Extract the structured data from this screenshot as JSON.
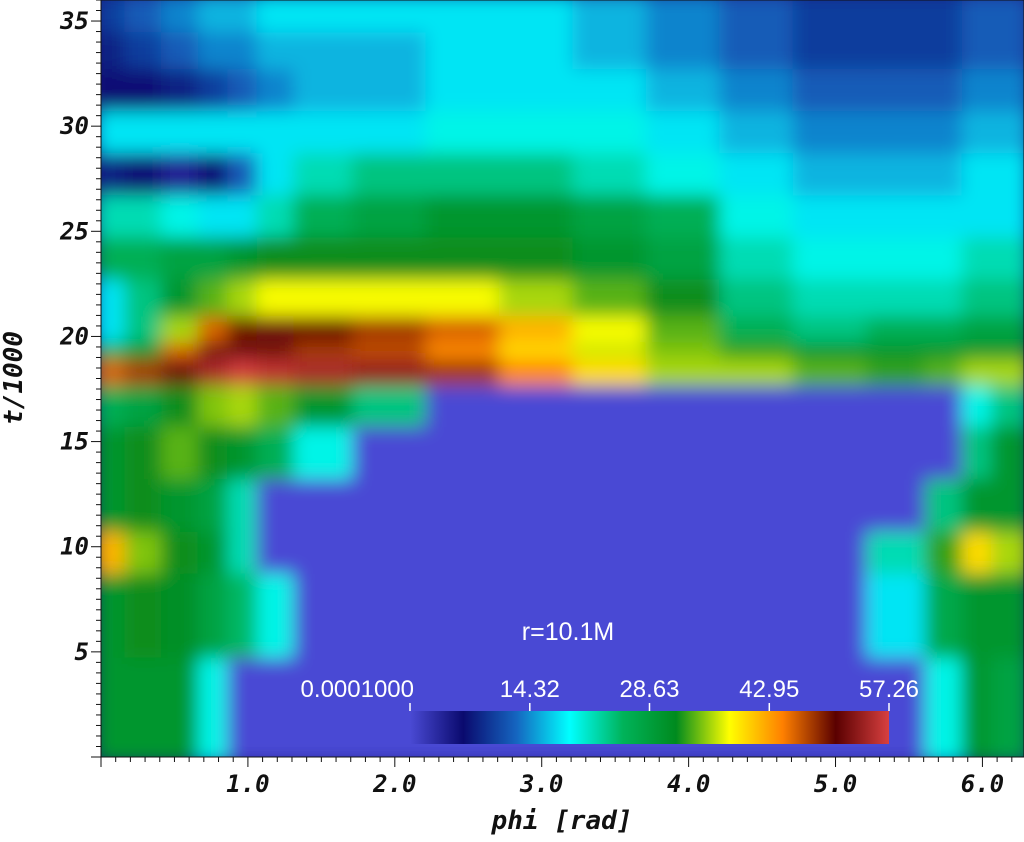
{
  "chart_data": {
    "type": "heatmap",
    "title": "",
    "xlabel": "phi [rad]",
    "ylabel": "t/1000",
    "xlim": [
      0,
      6.283
    ],
    "ylim": [
      0,
      36
    ],
    "x_ticks": [
      1.0,
      2.0,
      3.0,
      4.0,
      5.0,
      6.0
    ],
    "x_tick_labels": [
      "1.0",
      "2.0",
      "3.0",
      "4.0",
      "5.0",
      "6.0"
    ],
    "y_ticks": [
      5,
      10,
      15,
      20,
      25,
      30,
      35
    ],
    "y_tick_labels": [
      "5",
      "10",
      "15",
      "20",
      "25",
      "30",
      "35"
    ],
    "annotation": "r=10.1M",
    "colormap": {
      "min": 0.0001,
      "max": 57.26,
      "tick_values": [
        0.0001,
        14.32,
        28.63,
        42.95,
        57.26
      ],
      "tick_labels": [
        "0.0001000",
        "14.32",
        "28.63",
        "42.95",
        "57.26"
      ],
      "colors": [
        "#4a4ad4",
        "#0a0a6e",
        "#1565c0",
        "#00ffff",
        "#00b35a",
        "#008a1e",
        "#ffff00",
        "#ff8000",
        "#5a0000",
        "#d84040"
      ]
    },
    "field_samples": {
      "phi": [
        0.1,
        0.3,
        0.6,
        0.8,
        1.0,
        1.2,
        1.5,
        2.0,
        2.5,
        3.0,
        3.5,
        4.0,
        4.5,
        5.0,
        5.5,
        5.8,
        6.0,
        6.2
      ],
      "t": [
        2,
        8,
        10,
        12,
        15,
        17,
        18.9,
        19.5,
        20.5,
        22,
        24,
        26,
        28,
        30,
        32,
        34,
        35.5
      ],
      "values": [
        [
          30,
          30,
          30,
          20,
          0.0001,
          0.0001,
          0.0001,
          0.0001,
          0.0001,
          0.0001,
          0.0001,
          0.0001,
          0.0001,
          0.0001,
          0.0001,
          20,
          30,
          28
        ],
        [
          30,
          32,
          31,
          28,
          25,
          20,
          0.0001,
          0.0001,
          0.0001,
          0.0001,
          0.0001,
          0.0001,
          0.0001,
          0.0001,
          18,
          27,
          30,
          30
        ],
        [
          42,
          35,
          32,
          30,
          22,
          0.0001,
          0.0001,
          0.0001,
          0.0001,
          0.0001,
          0.0001,
          0.0001,
          0.0001,
          0.0001,
          22,
          33,
          40,
          36
        ],
        [
          30,
          32,
          30,
          28,
          22,
          0.0001,
          0.0001,
          0.0001,
          0.0001,
          0.0001,
          0.0001,
          0.0001,
          0.0001,
          0.0001,
          0.0001,
          24,
          30,
          30
        ],
        [
          30,
          32,
          34,
          32,
          30,
          26,
          20,
          0.0001,
          0.0001,
          0.0001,
          0.0001,
          0.0001,
          0.0001,
          0.0001,
          0.0001,
          0.0001,
          24,
          30
        ],
        [
          26,
          28,
          32,
          35,
          36,
          34,
          30,
          24,
          0.0001,
          0.0001,
          0.0001,
          0.0001,
          0.0001,
          0.0001,
          0.0001,
          0.0001,
          20,
          24
        ],
        [
          46,
          48,
          52,
          55,
          57,
          56,
          55,
          54,
          48,
          44,
          40,
          36,
          36,
          34,
          33,
          34,
          36,
          36
        ],
        [
          26,
          30,
          46,
          52,
          52,
          50,
          48,
          47,
          44,
          40,
          37,
          35,
          33,
          30,
          30,
          30,
          30,
          30
        ],
        [
          18,
          24,
          36,
          46,
          50,
          52,
          50,
          48,
          46,
          42,
          38,
          34,
          26,
          24,
          26,
          26,
          28,
          28
        ],
        [
          18,
          24,
          30,
          34,
          36,
          38,
          38,
          38,
          38,
          36,
          34,
          32,
          24,
          22,
          22,
          22,
          24,
          24
        ],
        [
          26,
          26,
          28,
          28,
          30,
          32,
          32,
          32,
          32,
          32,
          30,
          28,
          22,
          20,
          20,
          20,
          22,
          22
        ],
        [
          22,
          22,
          20,
          18,
          18,
          22,
          26,
          28,
          30,
          30,
          28,
          26,
          20,
          18,
          18,
          18,
          18,
          18
        ],
        [
          8,
          6,
          4,
          6,
          12,
          18,
          22,
          24,
          24,
          24,
          22,
          20,
          18,
          16,
          16,
          16,
          18,
          18
        ],
        [
          18,
          18,
          18,
          18,
          18,
          18,
          18,
          18,
          20,
          20,
          20,
          18,
          16,
          14,
          14,
          14,
          16,
          16
        ],
        [
          6,
          6,
          8,
          10,
          12,
          14,
          16,
          16,
          18,
          18,
          18,
          16,
          14,
          12,
          12,
          12,
          14,
          14
        ],
        [
          8,
          10,
          12,
          14,
          14,
          16,
          16,
          16,
          18,
          18,
          16,
          14,
          12,
          10,
          10,
          10,
          12,
          12
        ],
        [
          10,
          12,
          14,
          16,
          16,
          18,
          18,
          18,
          18,
          18,
          16,
          14,
          12,
          10,
          10,
          10,
          12,
          12
        ]
      ]
    }
  }
}
